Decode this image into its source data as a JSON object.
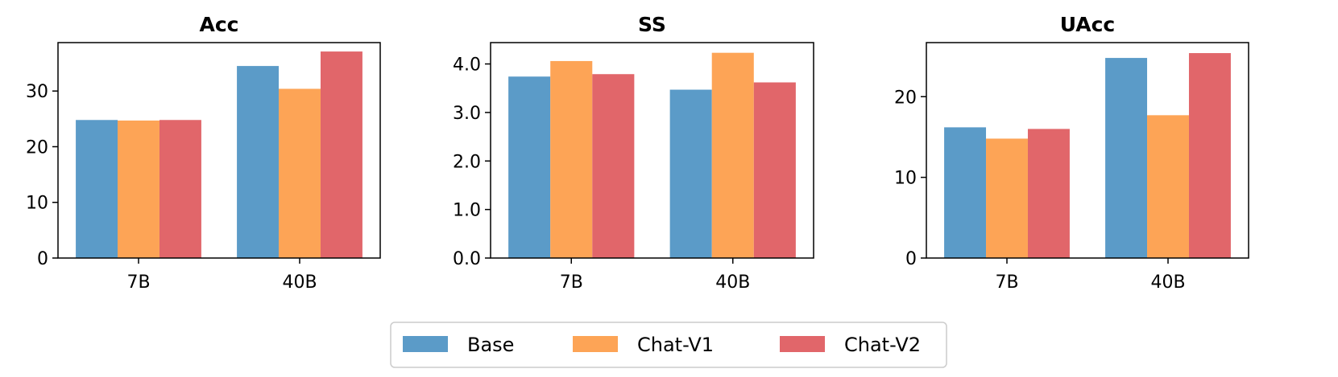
{
  "colors": {
    "Base": "#5b9bc8",
    "Chat-V1": "#fda456",
    "Chat-V2": "#e1666a"
  },
  "chart_data": [
    {
      "type": "bar",
      "title": "Acc",
      "categories": [
        "7B",
        "40B"
      ],
      "series": [
        {
          "name": "Base",
          "values": [
            24.8,
            34.5
          ]
        },
        {
          "name": "Chat-V1",
          "values": [
            24.7,
            30.4
          ]
        },
        {
          "name": "Chat-V2",
          "values": [
            24.8,
            37.1
          ]
        }
      ],
      "ylim": [
        0,
        38.7
      ],
      "yticks": [
        0,
        10,
        20,
        30
      ],
      "ytick_labels": [
        "0",
        "10",
        "20",
        "30"
      ],
      "grid": false
    },
    {
      "type": "bar",
      "title": "SS",
      "categories": [
        "7B",
        "40B"
      ],
      "series": [
        {
          "name": "Base",
          "values": [
            3.74,
            3.47
          ]
        },
        {
          "name": "Chat-V1",
          "values": [
            4.06,
            4.23
          ]
        },
        {
          "name": "Chat-V2",
          "values": [
            3.79,
            3.62
          ]
        }
      ],
      "ylim": [
        0,
        4.44
      ],
      "yticks": [
        0,
        1,
        2,
        3,
        4
      ],
      "ytick_labels": [
        "0.0",
        "1.0",
        "2.0",
        "3.0",
        "4.0"
      ],
      "grid": false
    },
    {
      "type": "bar",
      "title": "UAcc",
      "categories": [
        "7B",
        "40B"
      ],
      "series": [
        {
          "name": "Base",
          "values": [
            16.2,
            24.8
          ]
        },
        {
          "name": "Chat-V1",
          "values": [
            14.8,
            17.7
          ]
        },
        {
          "name": "Chat-V2",
          "values": [
            16.0,
            25.4
          ]
        }
      ],
      "ylim": [
        0,
        26.7
      ],
      "yticks": [
        0,
        10,
        20
      ],
      "ytick_labels": [
        "0",
        "10",
        "20"
      ],
      "grid": false
    }
  ],
  "legend": {
    "placement": "bottom-center",
    "entries": [
      "Base",
      "Chat-V1",
      "Chat-V2"
    ]
  }
}
